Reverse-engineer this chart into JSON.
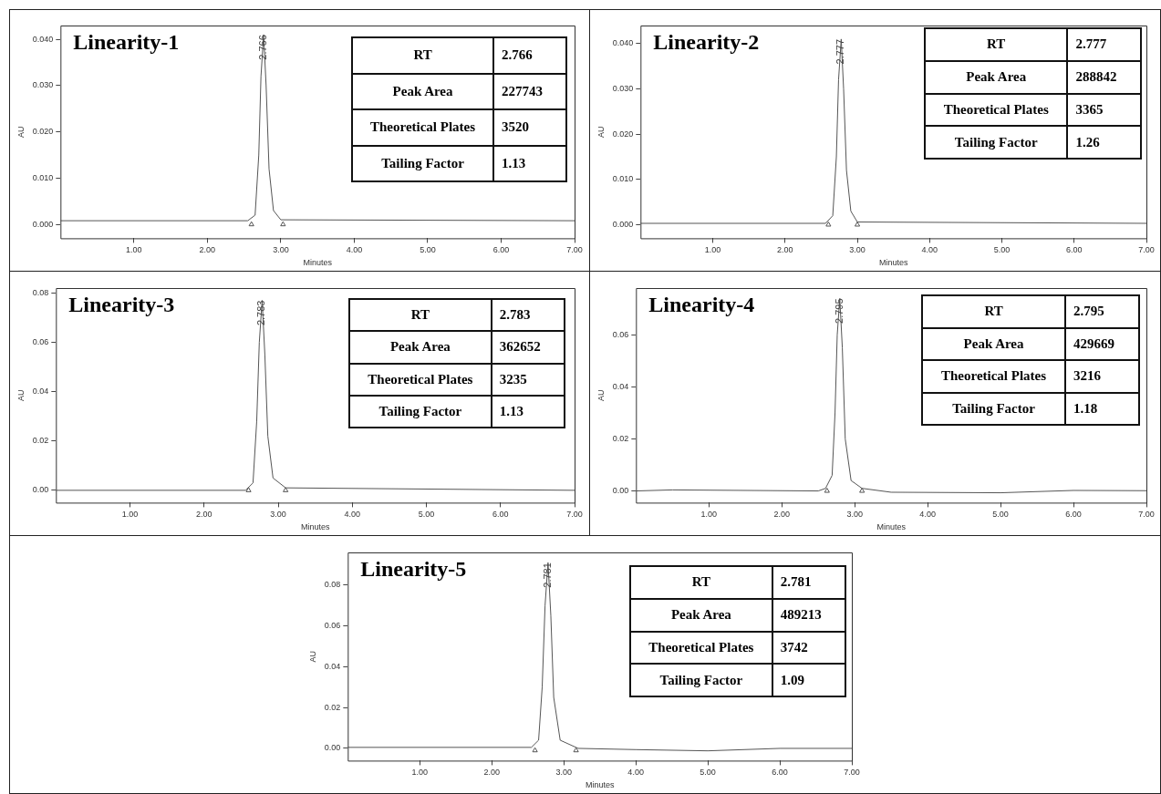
{
  "chart_data": [
    {
      "type": "line",
      "title": "Linearity-1",
      "xlabel": "Minutes",
      "ylabel": "AU",
      "xlim": [
        0,
        7
      ],
      "ylim": [
        -0.003,
        0.043
      ],
      "xticks": [
        {
          "value": 1,
          "label": "1.00"
        },
        {
          "value": 2,
          "label": "2.00"
        },
        {
          "value": 3,
          "label": "3.00"
        },
        {
          "value": 4,
          "label": "4.00"
        },
        {
          "value": 5,
          "label": "5.00"
        },
        {
          "value": 6,
          "label": "6.00"
        },
        {
          "value": 7,
          "label": "7.00"
        }
      ],
      "yticks": [
        {
          "value": 0,
          "label": "0.000"
        },
        {
          "value": 0.01,
          "label": "0.010"
        },
        {
          "value": 0.02,
          "label": "0.020"
        },
        {
          "value": 0.03,
          "label": "0.030"
        },
        {
          "value": 0.04,
          "label": "0.040"
        }
      ],
      "grid": false,
      "legend": false,
      "series": [
        {
          "color": "#555555",
          "marker": "none",
          "x": [
            0,
            2.55,
            2.65,
            2.7,
            2.73,
            2.766,
            2.8,
            2.84,
            2.9,
            3.0,
            7
          ],
          "values": [
            0.0008,
            0.0008,
            0.002,
            0.015,
            0.032,
            0.041,
            0.03,
            0.012,
            0.003,
            0.001,
            0.0008
          ]
        },
        {
          "type": "scatter",
          "color": "#555555",
          "marker": "triangle",
          "x": [
            2.6,
            3.03
          ],
          "values": [
            0,
            0
          ]
        }
      ],
      "annotations": [
        {
          "text": "2.766",
          "x": 2.766,
          "y": 0.041
        },
        "RT",
        "2.766",
        "Peak Area",
        "227743",
        "Theoretical Plates",
        "3520",
        "Tailing Factor",
        "1.13"
      ]
    },
    {
      "type": "line",
      "title": "Linearity-2",
      "xlabel": "Minutes",
      "ylabel": "AU",
      "xlim": [
        0,
        7
      ],
      "ylim": [
        -0.003,
        0.044
      ],
      "xticks": [
        {
          "value": 1,
          "label": "1.00"
        },
        {
          "value": 2,
          "label": "2.00"
        },
        {
          "value": 3,
          "label": "3.00"
        },
        {
          "value": 4,
          "label": "4.00"
        },
        {
          "value": 5,
          "label": "5.00"
        },
        {
          "value": 6,
          "label": "6.00"
        },
        {
          "value": 7,
          "label": "7.00"
        }
      ],
      "yticks": [
        {
          "value": 0,
          "label": "0.000"
        },
        {
          "value": 0.01,
          "label": "0.010"
        },
        {
          "value": 0.02,
          "label": "0.020"
        },
        {
          "value": 0.03,
          "label": "0.030"
        },
        {
          "value": 0.04,
          "label": "0.040"
        }
      ],
      "grid": false,
      "legend": false,
      "series": [
        {
          "color": "#555555",
          "marker": "none",
          "x": [
            0,
            2.56,
            2.66,
            2.71,
            2.74,
            2.777,
            2.81,
            2.85,
            2.91,
            3.0,
            7
          ],
          "values": [
            0.0003,
            0.0003,
            0.002,
            0.015,
            0.032,
            0.041,
            0.03,
            0.012,
            0.003,
            0.0006,
            0.0003
          ]
        },
        {
          "type": "scatter",
          "color": "#555555",
          "marker": "triangle",
          "x": [
            2.6,
            3.0
          ],
          "values": [
            0,
            0
          ]
        }
      ],
      "annotations": [
        {
          "text": "2.777",
          "x": 2.777,
          "y": 0.041
        },
        "RT",
        "2.777",
        "Peak Area",
        "288842",
        "Theoretical Plates",
        "3365",
        "Tailing Factor",
        "1.26"
      ]
    },
    {
      "type": "line",
      "title": "Linearity-3",
      "xlabel": "Minutes",
      "ylabel": "AU",
      "xlim": [
        0,
        7
      ],
      "ylim": [
        -0.005,
        0.082
      ],
      "xticks": [
        {
          "value": 1,
          "label": "1.00"
        },
        {
          "value": 2,
          "label": "2.00"
        },
        {
          "value": 3,
          "label": "3.00"
        },
        {
          "value": 4,
          "label": "4.00"
        },
        {
          "value": 5,
          "label": "5.00"
        },
        {
          "value": 6,
          "label": "6.00"
        },
        {
          "value": 7,
          "label": "7.00"
        }
      ],
      "yticks": [
        {
          "value": 0,
          "label": "0.00"
        },
        {
          "value": 0.02,
          "label": "0.02"
        },
        {
          "value": 0.04,
          "label": "0.04"
        },
        {
          "value": 0.06,
          "label": "0.06"
        },
        {
          "value": 0.08,
          "label": "0.08"
        }
      ],
      "grid": false,
      "legend": false,
      "series": [
        {
          "color": "#555555",
          "marker": "none",
          "x": [
            0,
            2.56,
            2.66,
            2.71,
            2.745,
            2.783,
            2.82,
            2.86,
            2.93,
            3.1,
            7
          ],
          "values": [
            0,
            0,
            0.003,
            0.028,
            0.06,
            0.077,
            0.055,
            0.022,
            0.005,
            0.001,
            0
          ]
        },
        {
          "type": "scatter",
          "color": "#555555",
          "marker": "triangle",
          "x": [
            2.6,
            3.1
          ],
          "values": [
            0,
            0
          ]
        }
      ],
      "annotations": [
        {
          "text": "2.783",
          "x": 2.783,
          "y": 0.077
        },
        "RT",
        "2.783",
        "Peak Area",
        "362652",
        "Theoretical Plates",
        "3235",
        "Tailing Factor",
        "1.13"
      ]
    },
    {
      "type": "line",
      "title": "Linearity-4",
      "xlabel": "Minutes",
      "ylabel": "AU",
      "xlim": [
        0,
        7
      ],
      "ylim": [
        -0.0045,
        0.078
      ],
      "xticks": [
        {
          "value": 1,
          "label": "1.00"
        },
        {
          "value": 2,
          "label": "2.00"
        },
        {
          "value": 3,
          "label": "3.00"
        },
        {
          "value": 4,
          "label": "4.00"
        },
        {
          "value": 5,
          "label": "5.00"
        },
        {
          "value": 6,
          "label": "6.00"
        },
        {
          "value": 7,
          "label": "7.00"
        }
      ],
      "yticks": [
        {
          "value": 0,
          "label": "0.00"
        },
        {
          "value": 0.02,
          "label": "0.02"
        },
        {
          "value": 0.04,
          "label": "0.04"
        },
        {
          "value": 0.06,
          "label": "0.06"
        }
      ],
      "grid": false,
      "legend": false,
      "series": [
        {
          "color": "#555555",
          "marker": "none",
          "x": [
            0,
            0.5,
            2.5,
            2.6,
            2.69,
            2.73,
            2.76,
            2.795,
            2.83,
            2.87,
            2.95,
            3.1,
            3.5,
            5,
            6,
            7
          ],
          "values": [
            0,
            0.0004,
            0,
            0.001,
            0.006,
            0.03,
            0.06,
            0.074,
            0.055,
            0.02,
            0.004,
            0.001,
            -0.0005,
            -0.0007,
            0.0002,
            0.0001
          ]
        },
        {
          "type": "scatter",
          "color": "#555555",
          "marker": "triangle",
          "x": [
            2.62,
            3.1
          ],
          "values": [
            0,
            0
          ]
        }
      ],
      "annotations": [
        {
          "text": "2.795",
          "x": 2.795,
          "y": 0.074
        },
        "RT",
        "2.795",
        "Peak Area",
        "429669",
        "Theoretical Plates",
        "3216",
        "Tailing Factor",
        "1.18"
      ]
    },
    {
      "type": "line",
      "title": "Linearity-5",
      "xlabel": "Minutes",
      "ylabel": "AU",
      "xlim": [
        0,
        7
      ],
      "ylim": [
        -0.006,
        0.096
      ],
      "xticks": [
        {
          "value": 1,
          "label": "1.00"
        },
        {
          "value": 2,
          "label": "2.00"
        },
        {
          "value": 3,
          "label": "3.00"
        },
        {
          "value": 4,
          "label": "4.00"
        },
        {
          "value": 5,
          "label": "5.00"
        },
        {
          "value": 6,
          "label": "6.00"
        },
        {
          "value": 7,
          "label": "7.00"
        }
      ],
      "yticks": [
        {
          "value": 0,
          "label": "0.00"
        },
        {
          "value": 0.02,
          "label": "0.02"
        },
        {
          "value": 0.04,
          "label": "0.04"
        },
        {
          "value": 0.06,
          "label": "0.06"
        },
        {
          "value": 0.08,
          "label": "0.08"
        }
      ],
      "grid": false,
      "legend": false,
      "series": [
        {
          "color": "#555555",
          "marker": "none",
          "x": [
            0,
            2.55,
            2.65,
            2.7,
            2.74,
            2.781,
            2.82,
            2.86,
            2.95,
            3.2,
            4,
            5,
            6,
            7
          ],
          "values": [
            0.0005,
            0.0005,
            0.004,
            0.03,
            0.07,
            0.091,
            0.065,
            0.025,
            0.004,
            0,
            -0.0006,
            -0.0012,
            0,
            0
          ]
        },
        {
          "type": "scatter",
          "color": "#555555",
          "marker": "triangle",
          "x": [
            2.6,
            3.17
          ],
          "values": [
            -0.001,
            -0.001
          ]
        }
      ],
      "annotations": [
        {
          "text": "2.781",
          "x": 2.781,
          "y": 0.091
        },
        "RT",
        "2.781",
        "Peak Area",
        "489213",
        "Theoretical Plates",
        "3742",
        "Tailing Factor",
        "1.09"
      ]
    }
  ]
}
